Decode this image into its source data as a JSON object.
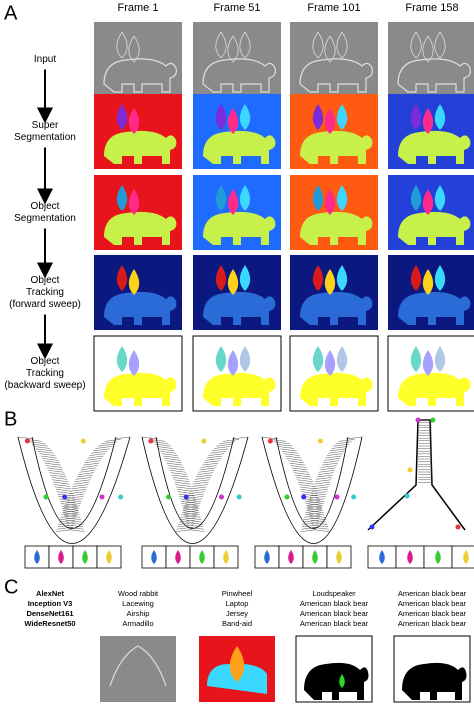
{
  "panel_a": {
    "label": "A",
    "frames": [
      "Frame 1",
      "Frame 51",
      "Frame 101",
      "Frame 158"
    ],
    "rows": [
      [
        "Input"
      ],
      [
        "Super",
        "Segmentation"
      ],
      [
        "Object",
        "Segmentation"
      ],
      [
        "Object",
        "Tracking",
        "(forward sweep)"
      ],
      [
        "Object",
        "Tracking",
        "(backward sweep)"
      ]
    ]
  },
  "panel_b": {
    "label": "B"
  },
  "panel_c": {
    "label": "C",
    "networks": [
      "AlexNet",
      "Inception V3",
      "DenseNet161",
      "WideResnet50"
    ],
    "predictions": [
      [
        "Wood rabbit",
        "Lacewing",
        "Airship",
        "Armadillo"
      ],
      [
        "Pinwheel",
        "Laptop",
        "Jersey",
        "Band-aid"
      ],
      [
        "Loudspeaker",
        "American black bear",
        "American black bear",
        "American black bear"
      ],
      [
        "American black bear",
        "American black bear",
        "American black bear",
        "American black bear"
      ]
    ]
  }
}
